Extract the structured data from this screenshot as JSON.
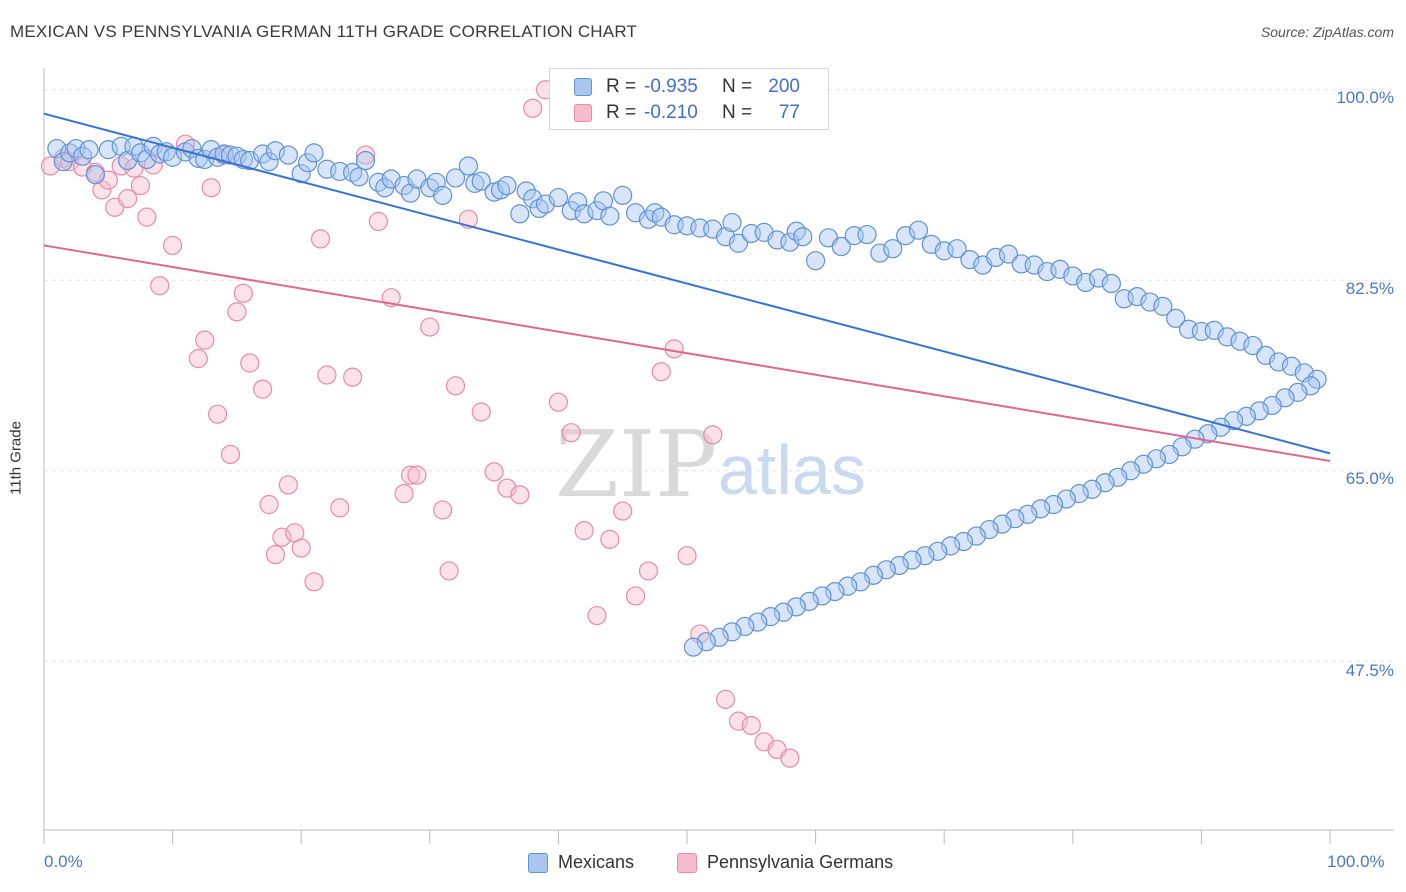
{
  "title": "MEXICAN VS PENNSYLVANIA GERMAN 11TH GRADE CORRELATION CHART",
  "source": "Source: ZipAtlas.com",
  "watermark": {
    "zip": "ZIP",
    "atlas": "atlas"
  },
  "colors": {
    "blue_fill": "#a9c6ef",
    "blue_stroke": "#5f92d6",
    "blue_line": "#3574d4",
    "pink_fill": "#f6bccd",
    "pink_stroke": "#e98aa8",
    "pink_line": "#e06792",
    "tick_text": "#4a78c8",
    "grid": "#e3e3e3"
  },
  "legend": {
    "rows": [
      {
        "r_label": "R =",
        "r_value": "-0.935",
        "n_label": "N =",
        "n_value": "200"
      },
      {
        "r_label": "R =",
        "r_value": "-0.210",
        "n_label": "N =",
        "n_value": "77"
      }
    ]
  },
  "bottom_legend": {
    "mexicans": "Mexicans",
    "penn_german": "Pennsylvania Germans"
  },
  "chart_data": {
    "type": "scatter",
    "title": "MEXICAN VS PENNSYLVANIA GERMAN 11TH GRADE CORRELATION CHART",
    "xlabel": "",
    "ylabel": "11th Grade",
    "xlim": [
      0,
      100
    ],
    "ylim": [
      32,
      102
    ],
    "x_tick_labels": [
      "0.0%",
      "100.0%"
    ],
    "y_ticks": [
      100.0,
      82.5,
      65.0,
      47.5
    ],
    "y_tick_labels": [
      "100.0%",
      "82.5%",
      "65.0%",
      "47.5%"
    ],
    "grid": true,
    "series": [
      {
        "name": "Mexicans",
        "R": -0.935,
        "N": 200,
        "trend": [
          [
            0,
            97.8
          ],
          [
            100,
            66.6
          ]
        ],
        "points": [
          [
            1,
            94.6
          ],
          [
            1.5,
            93.4
          ],
          [
            2,
            94.2
          ],
          [
            2.5,
            94.6
          ],
          [
            3,
            93.9
          ],
          [
            3.5,
            94.5
          ],
          [
            4,
            92.2
          ],
          [
            5,
            94.5
          ],
          [
            6,
            94.8
          ],
          [
            6.5,
            93.5
          ],
          [
            7,
            94.8
          ],
          [
            7.5,
            94.2
          ],
          [
            8,
            93.6
          ],
          [
            8.5,
            94.8
          ],
          [
            9,
            94.1
          ],
          [
            9.5,
            94.3
          ],
          [
            10,
            93.8
          ],
          [
            11,
            94.3
          ],
          [
            11.5,
            94.6
          ],
          [
            12,
            93.7
          ],
          [
            12.5,
            93.6
          ],
          [
            13,
            94.5
          ],
          [
            13.5,
            93.8
          ],
          [
            14,
            94.1
          ],
          [
            14.5,
            94.0
          ],
          [
            15,
            93.9
          ],
          [
            15.5,
            93.6
          ],
          [
            16,
            93.5
          ],
          [
            17,
            94.1
          ],
          [
            17.5,
            93.4
          ],
          [
            18,
            94.4
          ],
          [
            19,
            94.0
          ],
          [
            20,
            92.3
          ],
          [
            20.5,
            93.3
          ],
          [
            21,
            94.2
          ],
          [
            22,
            92.7
          ],
          [
            23,
            92.5
          ],
          [
            24,
            92.4
          ],
          [
            24.5,
            92.0
          ],
          [
            25,
            93.5
          ],
          [
            26,
            91.5
          ],
          [
            26.5,
            91.0
          ],
          [
            27,
            91.8
          ],
          [
            28,
            91.2
          ],
          [
            28.5,
            90.5
          ],
          [
            29,
            91.8
          ],
          [
            30,
            91.0
          ],
          [
            30.5,
            91.5
          ],
          [
            31,
            90.3
          ],
          [
            32,
            91.9
          ],
          [
            33,
            93.0
          ],
          [
            33.5,
            91.4
          ],
          [
            34,
            91.6
          ],
          [
            35,
            90.6
          ],
          [
            35.5,
            90.8
          ],
          [
            36,
            91.2
          ],
          [
            37,
            88.6
          ],
          [
            37.5,
            90.7
          ],
          [
            38,
            90.0
          ],
          [
            38.5,
            89.1
          ],
          [
            39,
            89.5
          ],
          [
            40,
            90.1
          ],
          [
            41,
            88.9
          ],
          [
            41.5,
            89.7
          ],
          [
            42,
            88.6
          ],
          [
            43,
            88.9
          ],
          [
            43.5,
            89.8
          ],
          [
            44,
            88.4
          ],
          [
            45,
            90.3
          ],
          [
            46,
            88.7
          ],
          [
            47,
            88.1
          ],
          [
            47.5,
            88.7
          ],
          [
            48,
            88.3
          ],
          [
            49,
            87.6
          ],
          [
            50,
            87.5
          ],
          [
            51,
            87.3
          ],
          [
            52,
            87.2
          ],
          [
            53,
            86.5
          ],
          [
            53.5,
            87.8
          ],
          [
            54,
            85.9
          ],
          [
            55,
            86.8
          ],
          [
            56,
            86.9
          ],
          [
            57,
            86.2
          ],
          [
            58,
            86.0
          ],
          [
            58.5,
            87.0
          ],
          [
            59,
            86.5
          ],
          [
            60,
            84.3
          ],
          [
            61,
            86.4
          ],
          [
            62,
            85.6
          ],
          [
            63,
            86.6
          ],
          [
            64,
            86.7
          ],
          [
            65,
            85.0
          ],
          [
            66,
            85.4
          ],
          [
            67,
            86.6
          ],
          [
            68,
            87.1
          ],
          [
            69,
            85.8
          ],
          [
            70,
            85.2
          ],
          [
            71,
            85.4
          ],
          [
            72,
            84.4
          ],
          [
            73,
            83.9
          ],
          [
            74,
            84.6
          ],
          [
            75,
            84.9
          ],
          [
            76,
            84.0
          ],
          [
            77,
            83.9
          ],
          [
            78,
            83.3
          ],
          [
            79,
            83.5
          ],
          [
            80,
            82.9
          ],
          [
            81,
            82.3
          ],
          [
            82,
            82.7
          ],
          [
            83,
            82.2
          ],
          [
            84,
            80.8
          ],
          [
            85,
            81.0
          ],
          [
            86,
            80.5
          ],
          [
            87,
            80.1
          ],
          [
            88,
            79.0
          ],
          [
            89,
            78.0
          ],
          [
            90,
            77.8
          ],
          [
            91,
            77.9
          ],
          [
            92,
            77.3
          ],
          [
            93,
            76.9
          ],
          [
            94,
            76.5
          ],
          [
            95,
            75.6
          ],
          [
            96,
            75.0
          ],
          [
            97,
            74.6
          ],
          [
            98,
            74.0
          ],
          [
            99,
            73.4
          ],
          [
            98.5,
            72.8
          ],
          [
            97.5,
            72.2
          ],
          [
            96.5,
            71.7
          ],
          [
            95.5,
            71.0
          ],
          [
            94.5,
            70.5
          ],
          [
            93.5,
            70.0
          ],
          [
            92.5,
            69.6
          ],
          [
            91.5,
            69.0
          ],
          [
            90.5,
            68.4
          ],
          [
            89.5,
            67.9
          ],
          [
            88.5,
            67.2
          ],
          [
            87.5,
            66.5
          ],
          [
            86.5,
            66.1
          ],
          [
            85.5,
            65.6
          ],
          [
            84.5,
            65.0
          ],
          [
            83.5,
            64.4
          ],
          [
            82.5,
            63.9
          ],
          [
            81.5,
            63.3
          ],
          [
            80.5,
            62.9
          ],
          [
            79.5,
            62.4
          ],
          [
            78.5,
            61.9
          ],
          [
            77.5,
            61.5
          ],
          [
            76.5,
            61.0
          ],
          [
            75.5,
            60.6
          ],
          [
            74.5,
            60.1
          ],
          [
            73.5,
            59.6
          ],
          [
            72.5,
            59.0
          ],
          [
            71.5,
            58.5
          ],
          [
            70.5,
            58.1
          ],
          [
            69.5,
            57.6
          ],
          [
            68.5,
            57.2
          ],
          [
            67.5,
            56.8
          ],
          [
            66.5,
            56.3
          ],
          [
            65.5,
            55.9
          ],
          [
            64.5,
            55.4
          ],
          [
            63.5,
            54.8
          ],
          [
            62.5,
            54.4
          ],
          [
            61.5,
            53.9
          ],
          [
            60.5,
            53.5
          ],
          [
            59.5,
            53.0
          ],
          [
            58.5,
            52.5
          ],
          [
            57.5,
            52.0
          ],
          [
            56.5,
            51.6
          ],
          [
            55.5,
            51.1
          ],
          [
            54.5,
            50.7
          ],
          [
            53.5,
            50.2
          ],
          [
            52.5,
            49.7
          ],
          [
            51.5,
            49.3
          ],
          [
            50.5,
            48.8
          ]
        ]
      },
      {
        "name": "Pennsylvania Germans",
        "R": -0.21,
        "N": 77,
        "trend": [
          [
            0,
            85.7
          ],
          [
            100,
            65.9
          ]
        ],
        "points": [
          [
            0.5,
            93.0
          ],
          [
            1.5,
            93.7
          ],
          [
            2,
            93.4
          ],
          [
            3,
            92.9
          ],
          [
            4,
            92.4
          ],
          [
            4.5,
            90.8
          ],
          [
            5,
            91.7
          ],
          [
            5.5,
            89.2
          ],
          [
            6,
            93.0
          ],
          [
            6.5,
            90.0
          ],
          [
            7,
            92.8
          ],
          [
            7.5,
            91.2
          ],
          [
            8,
            88.3
          ],
          [
            8.5,
            93.1
          ],
          [
            9,
            82.0
          ],
          [
            10,
            85.7
          ],
          [
            11,
            95.0
          ],
          [
            12,
            75.3
          ],
          [
            12.5,
            77.0
          ],
          [
            13,
            91.0
          ],
          [
            13.5,
            70.2
          ],
          [
            14,
            94.0
          ],
          [
            14.5,
            66.5
          ],
          [
            15,
            79.6
          ],
          [
            15.5,
            81.3
          ],
          [
            16,
            74.9
          ],
          [
            17,
            72.5
          ],
          [
            17.5,
            61.9
          ],
          [
            18,
            57.3
          ],
          [
            18.5,
            58.9
          ],
          [
            19,
            63.7
          ],
          [
            19.5,
            59.3
          ],
          [
            20,
            57.9
          ],
          [
            21,
            54.8
          ],
          [
            21.5,
            86.3
          ],
          [
            22,
            73.8
          ],
          [
            23,
            61.6
          ],
          [
            24,
            73.6
          ],
          [
            25,
            94.0
          ],
          [
            26,
            87.9
          ],
          [
            27,
            80.9
          ],
          [
            28,
            62.9
          ],
          [
            28.5,
            64.6
          ],
          [
            29,
            64.6
          ],
          [
            30,
            78.2
          ],
          [
            31,
            61.4
          ],
          [
            31.5,
            55.8
          ],
          [
            32,
            72.8
          ],
          [
            33,
            88.1
          ],
          [
            34,
            70.4
          ],
          [
            35,
            64.9
          ],
          [
            36,
            63.4
          ],
          [
            37,
            62.8
          ],
          [
            38,
            98.3
          ],
          [
            39,
            100.0
          ],
          [
            40,
            71.3
          ],
          [
            41,
            68.5
          ],
          [
            42,
            59.5
          ],
          [
            43,
            51.7
          ],
          [
            44,
            58.7
          ],
          [
            45,
            61.3
          ],
          [
            46,
            53.5
          ],
          [
            47,
            55.8
          ],
          [
            48,
            74.1
          ],
          [
            49,
            76.2
          ],
          [
            50,
            57.2
          ],
          [
            51,
            50.0
          ],
          [
            52,
            68.3
          ],
          [
            53,
            44.0
          ],
          [
            54,
            42.0
          ],
          [
            55,
            41.6
          ],
          [
            56,
            40.1
          ],
          [
            57,
            39.4
          ],
          [
            58,
            38.6
          ]
        ]
      }
    ]
  }
}
